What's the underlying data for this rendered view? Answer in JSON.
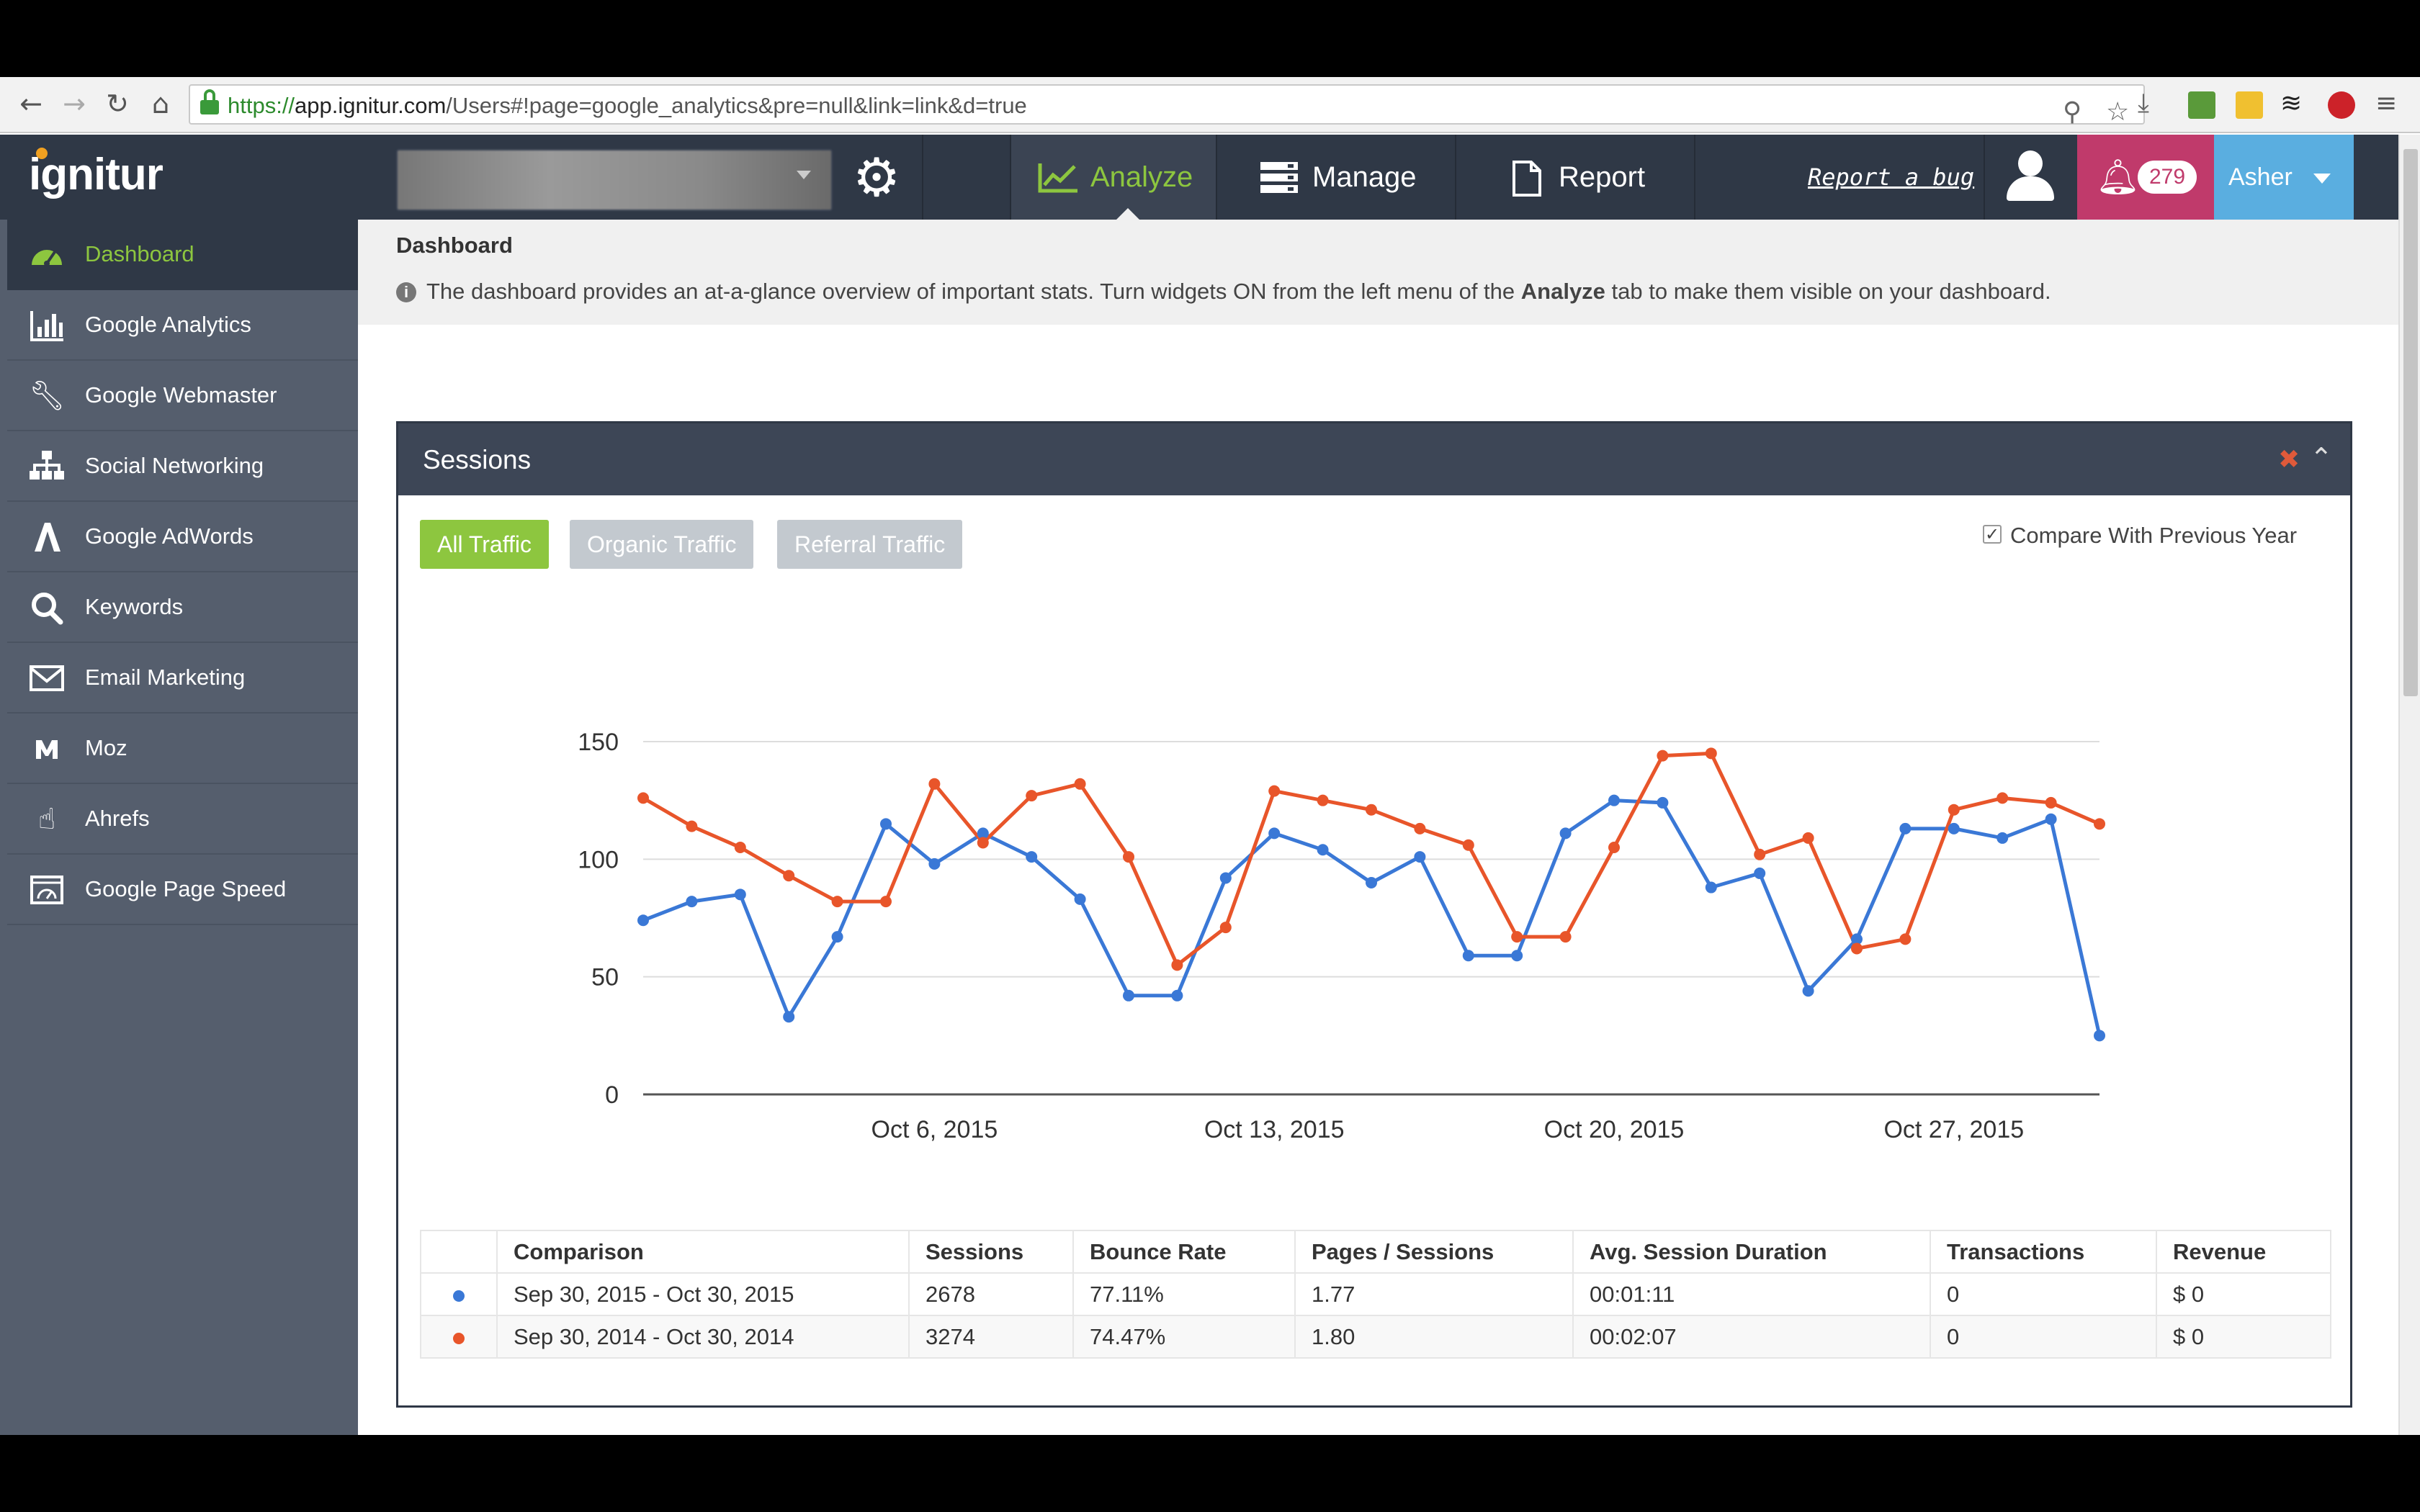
{
  "browser": {
    "url_scheme": "https://",
    "url_host": "app.ignitur.com",
    "url_path": "/Users#!page=google_analytics&pre=null&link=link&d=true"
  },
  "app": {
    "logo": "ignitur",
    "tabs": [
      {
        "label": "Analyze",
        "icon": "line-chart-icon",
        "active": true
      },
      {
        "label": "Manage",
        "icon": "server-stack-icon",
        "active": false
      },
      {
        "label": "Report",
        "icon": "document-icon",
        "active": false
      }
    ],
    "report_bug": "Report a bug",
    "notifications_count": "279",
    "user_name": "Asher"
  },
  "sidebar": {
    "items": [
      {
        "label": "Dashboard",
        "icon": "dashboard-gauge-icon",
        "active": true
      },
      {
        "label": "Google Analytics",
        "icon": "bar-chart-icon"
      },
      {
        "label": "Google Webmaster",
        "icon": "wrench-icon"
      },
      {
        "label": "Social Networking",
        "icon": "sitemap-icon"
      },
      {
        "label": "Google AdWords",
        "icon": "adwords-logo-icon"
      },
      {
        "label": "Keywords",
        "icon": "search-icon"
      },
      {
        "label": "Email Marketing",
        "icon": "envelope-icon"
      },
      {
        "label": "Moz",
        "icon": "moz-logo-icon"
      },
      {
        "label": "Ahrefs",
        "icon": "pointer-hand-icon"
      },
      {
        "label": "Google Page Speed",
        "icon": "speed-gauge-icon"
      }
    ]
  },
  "main": {
    "breadcrumb": "Dashboard",
    "info_prefix": "The dashboard provides an at-a-glance overview of important stats. Turn widgets ON from the left menu of the ",
    "info_bold": "Analyze",
    "info_suffix": " tab to make them visible on your dashboard.",
    "widget": {
      "title": "Sessions",
      "filters": [
        {
          "label": "All Traffic",
          "active": true
        },
        {
          "label": "Organic Traffic",
          "active": false
        },
        {
          "label": "Referral Traffic",
          "active": false
        }
      ],
      "compare_label": "Compare With Previous Year",
      "compare_checked": true
    }
  },
  "colors": {
    "accent_green": "#8dc63f",
    "series_current": "#3a78d6",
    "series_previous": "#e8552a",
    "navbar": "#2f3846",
    "notification": "#c03a6b",
    "user_menu": "#5aaee0"
  },
  "chart_data": {
    "type": "line",
    "ylim": [
      0,
      150
    ],
    "yticks": [
      0,
      50,
      100,
      150
    ],
    "x_start": "Sep 30",
    "x_end": "Oct 30",
    "xtick_labels": [
      "Oct 6, 2015",
      "Oct 13, 2015",
      "Oct 20, 2015",
      "Oct 27, 2015"
    ],
    "xtick_positions": [
      6,
      13,
      20,
      27
    ],
    "grid": true,
    "legend": "none",
    "series": [
      {
        "color": "#3a78d6",
        "values": [
          74,
          82,
          85,
          33,
          67,
          115,
          98,
          111,
          101,
          83,
          42,
          42,
          92,
          111,
          104,
          90,
          101,
          59,
          59,
          111,
          125,
          124,
          88,
          94,
          44,
          66,
          113,
          113,
          109,
          117,
          25
        ]
      },
      {
        "color": "#e8552a",
        "values": [
          126,
          114,
          105,
          93,
          82,
          82,
          132,
          107,
          127,
          132,
          101,
          55,
          71,
          129,
          125,
          121,
          113,
          106,
          67,
          67,
          105,
          144,
          145,
          102,
          109,
          62,
          66,
          121,
          126,
          124,
          115
        ]
      }
    ]
  },
  "table": {
    "headers": [
      "",
      "Comparison",
      "Sessions",
      "Bounce Rate",
      "Pages / Sessions",
      "Avg. Session Duration",
      "Transactions",
      "Revenue"
    ],
    "rows": [
      {
        "color": "#3a78d6",
        "cells": [
          "Sep 30, 2015 - Oct 30, 2015",
          "2678",
          "77.11%",
          "1.77",
          "00:01:11",
          "0",
          "$ 0"
        ]
      },
      {
        "color": "#e8552a",
        "cells": [
          "Sep 30, 2014 - Oct 30, 2014",
          "3274",
          "74.47%",
          "1.80",
          "00:02:07",
          "0",
          "$ 0"
        ]
      }
    ]
  }
}
